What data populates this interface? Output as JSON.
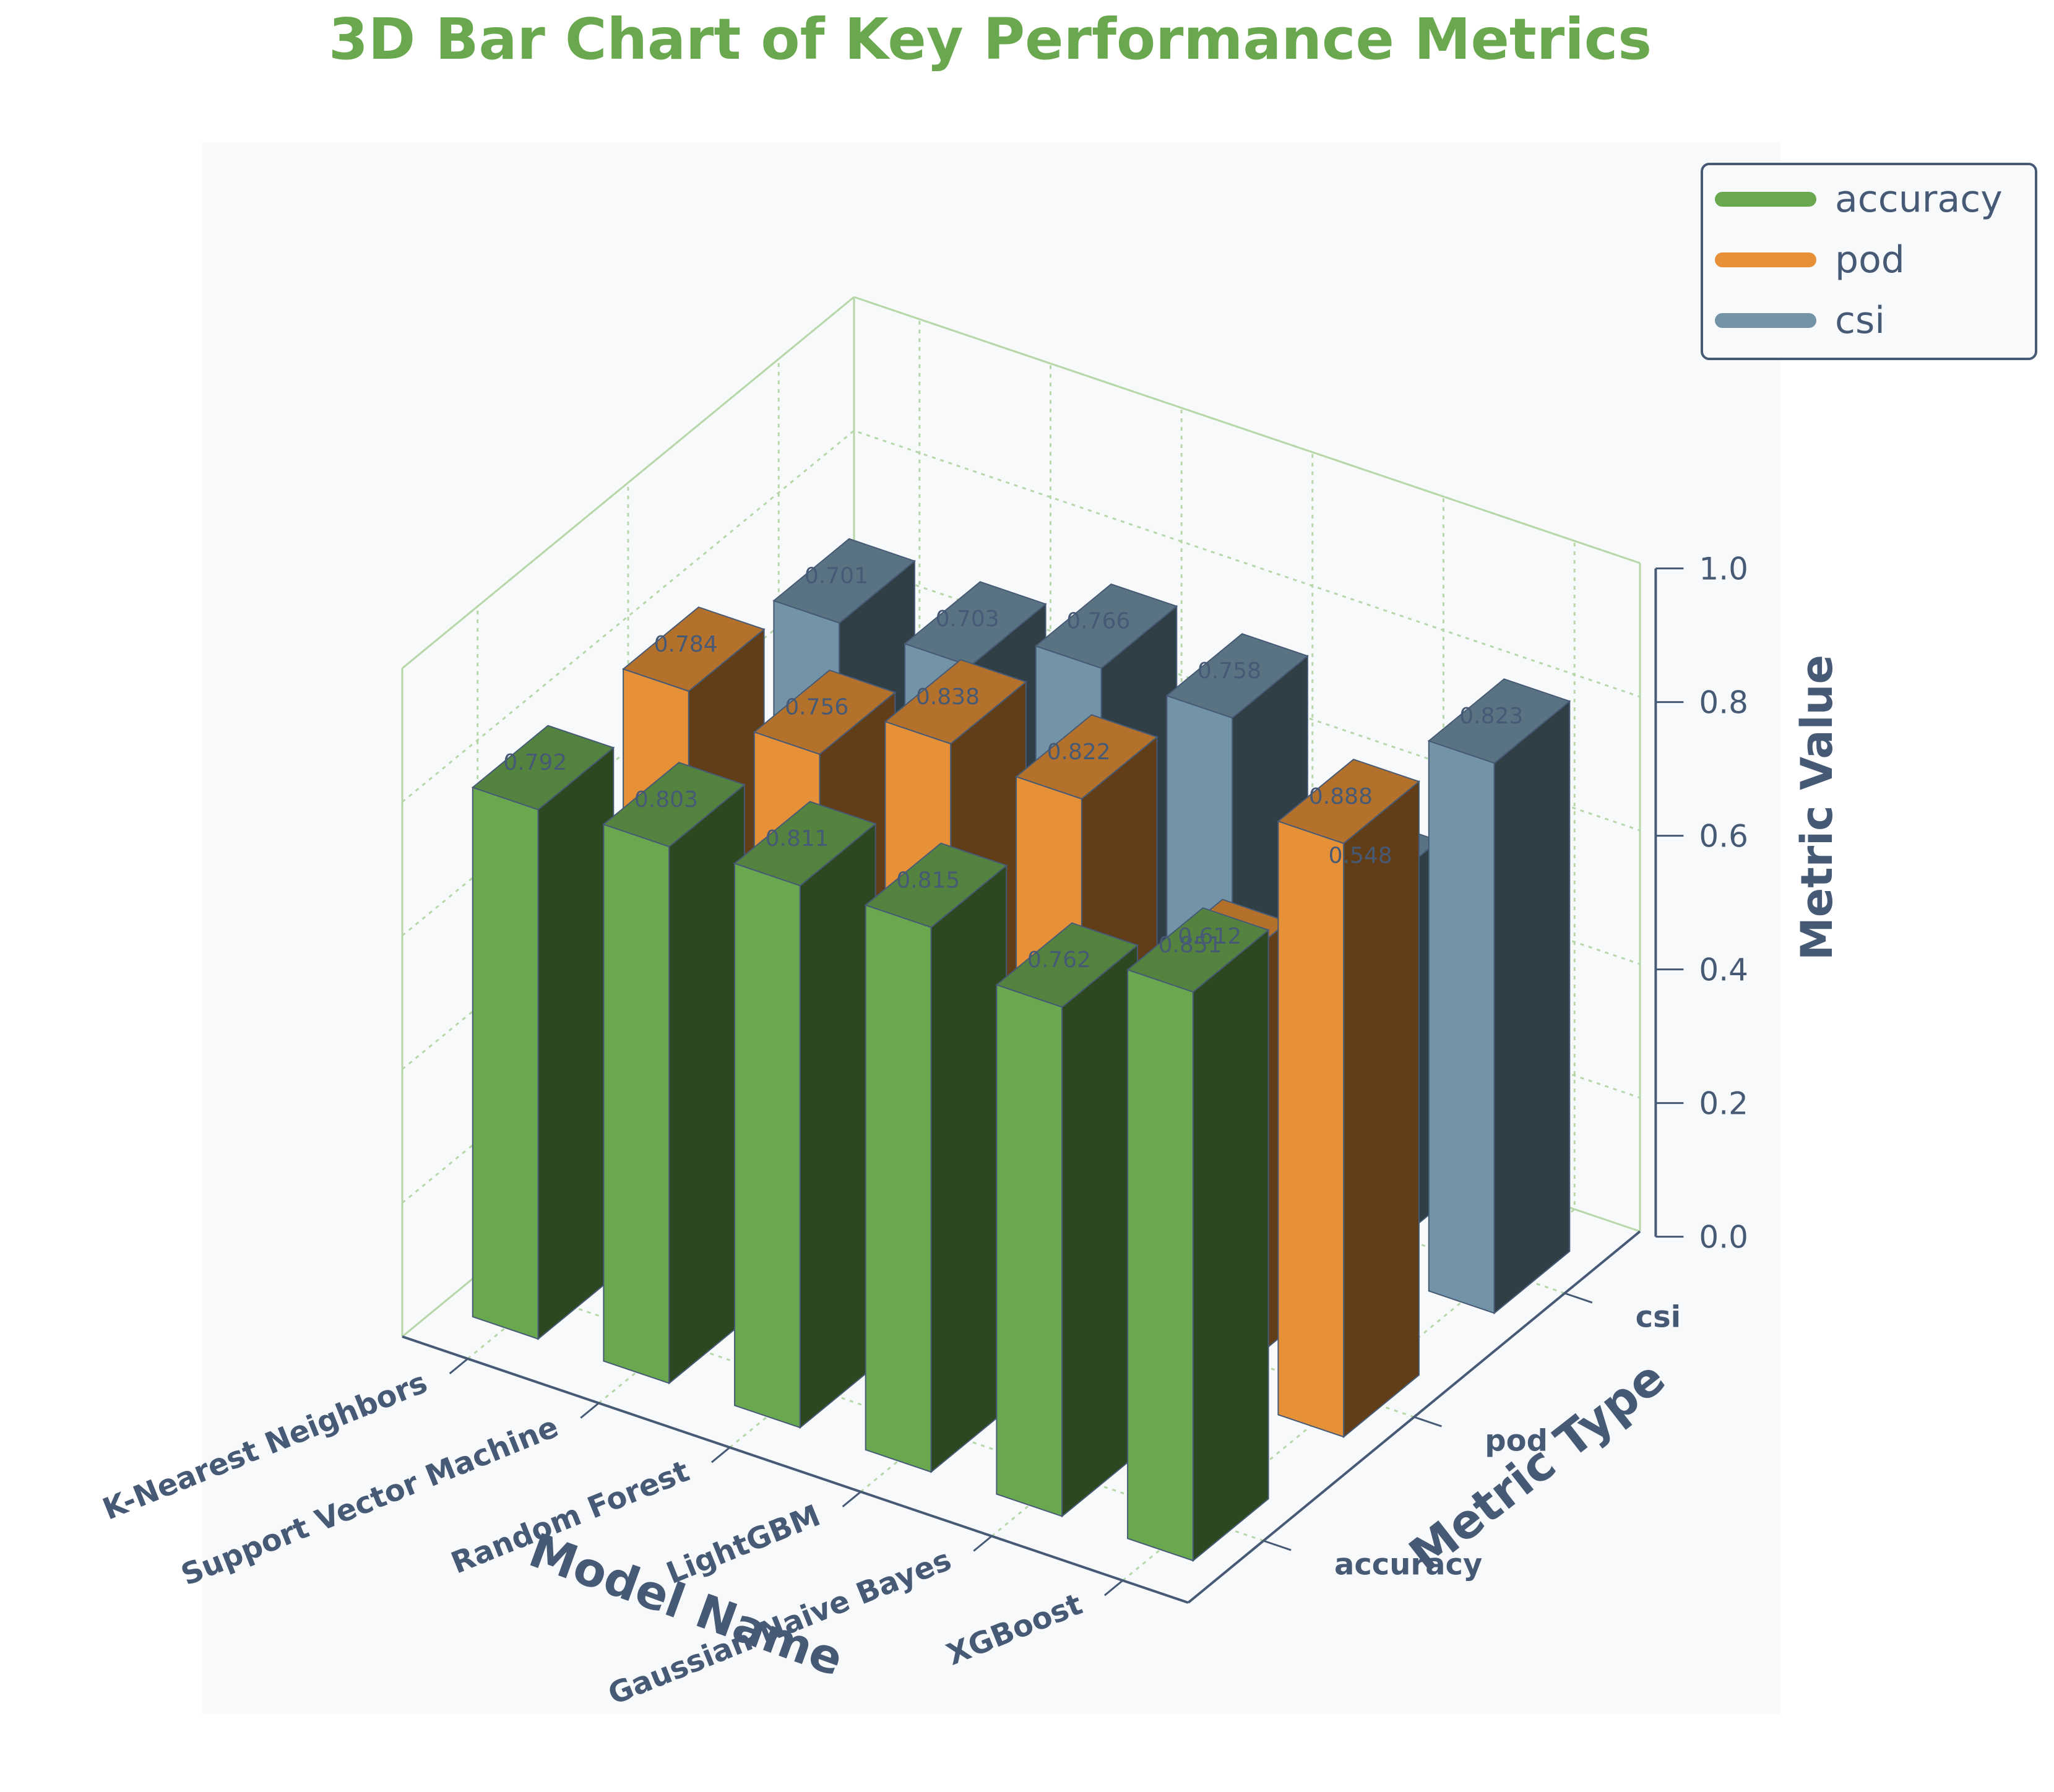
{
  "chart_data": {
    "type": "bar",
    "subtype": "3d",
    "title": "3D Bar Chart of Key Performance Metrics",
    "xlabel": "Model Name",
    "ylabel": "Metric Type",
    "zlabel": "Metric Value",
    "categories": [
      "K-Nearest Neighbors",
      "Support Vector Machine",
      "Random Forest",
      "LightGBM",
      "Gaussian Naive Bayes",
      "XGBoost"
    ],
    "metric_types": [
      "accuracy",
      "pod",
      "csi"
    ],
    "zlim": [
      0,
      1.0
    ],
    "z_ticks": [
      "0.0",
      "0.2",
      "0.4",
      "0.6",
      "0.8",
      "1.0"
    ],
    "series": [
      {
        "name": "accuracy",
        "color": "#6aa84f",
        "values": [
          0.792,
          0.803,
          0.811,
          0.815,
          0.762,
          0.851
        ],
        "labels": [
          "0.792",
          "0.803",
          "0.811",
          "0.815",
          "0.762",
          "0.851"
        ]
      },
      {
        "name": "pod",
        "color": "#e69138",
        "values": [
          0.784,
          0.756,
          0.838,
          0.822,
          0.612,
          0.888
        ],
        "labels": [
          "0.784",
          "0.756",
          "0.838",
          "0.822",
          "0.612",
          "0.888"
        ]
      },
      {
        "name": "csi",
        "color": "#7393a7",
        "values": [
          0.701,
          0.703,
          0.766,
          0.758,
          0.548,
          0.823
        ],
        "labels": [
          "0.701",
          "0.703",
          "0.766",
          "0.758",
          "0.548",
          "0.823"
        ]
      }
    ],
    "grid": true,
    "legend_position": "top-right"
  },
  "legend": [
    {
      "label": "accuracy",
      "color": "#6aa84f"
    },
    {
      "label": "pod",
      "color": "#e69138"
    },
    {
      "label": "csi",
      "color": "#7393a7"
    }
  ]
}
